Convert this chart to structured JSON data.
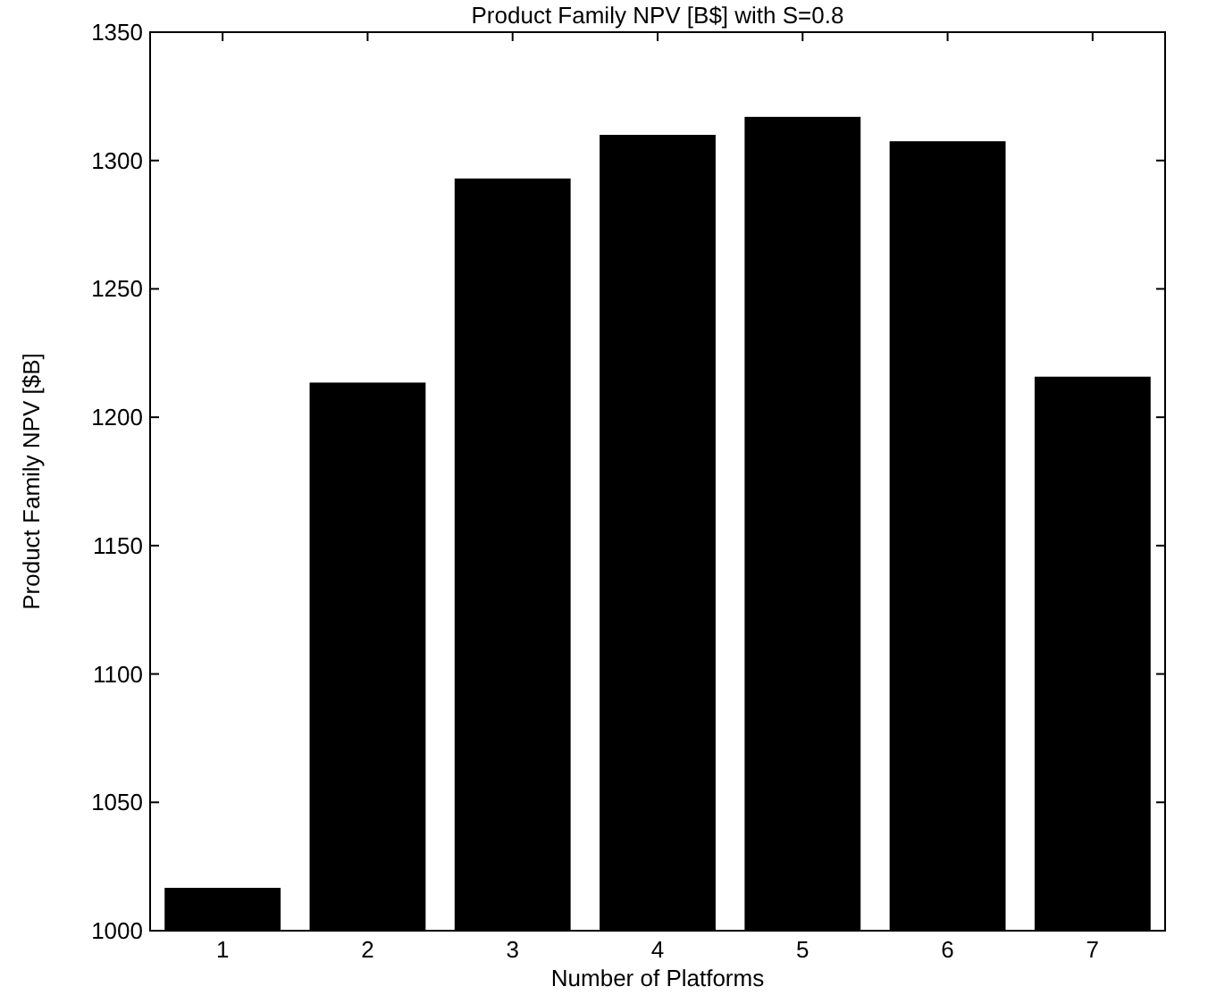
{
  "chart_data": {
    "type": "bar",
    "title": "Product Family NPV [B$] with S=0.8",
    "xlabel": "Number of Platforms",
    "ylabel": "Product Family NPV [$B]",
    "x": [
      1,
      2,
      3,
      4,
      5,
      6,
      7
    ],
    "values": [
      1016.7,
      1213.5,
      1293,
      1310,
      1317,
      1307.5,
      1215.8
    ],
    "color": "#000000",
    "xlim": [
      0.5,
      7.5
    ],
    "xticks": [
      1,
      2,
      3,
      4,
      5,
      6,
      7
    ],
    "ylim": [
      1000,
      1350
    ],
    "yticks": [
      1000,
      1050,
      1100,
      1150,
      1200,
      1250,
      1300,
      1350
    ],
    "grid": false
  }
}
